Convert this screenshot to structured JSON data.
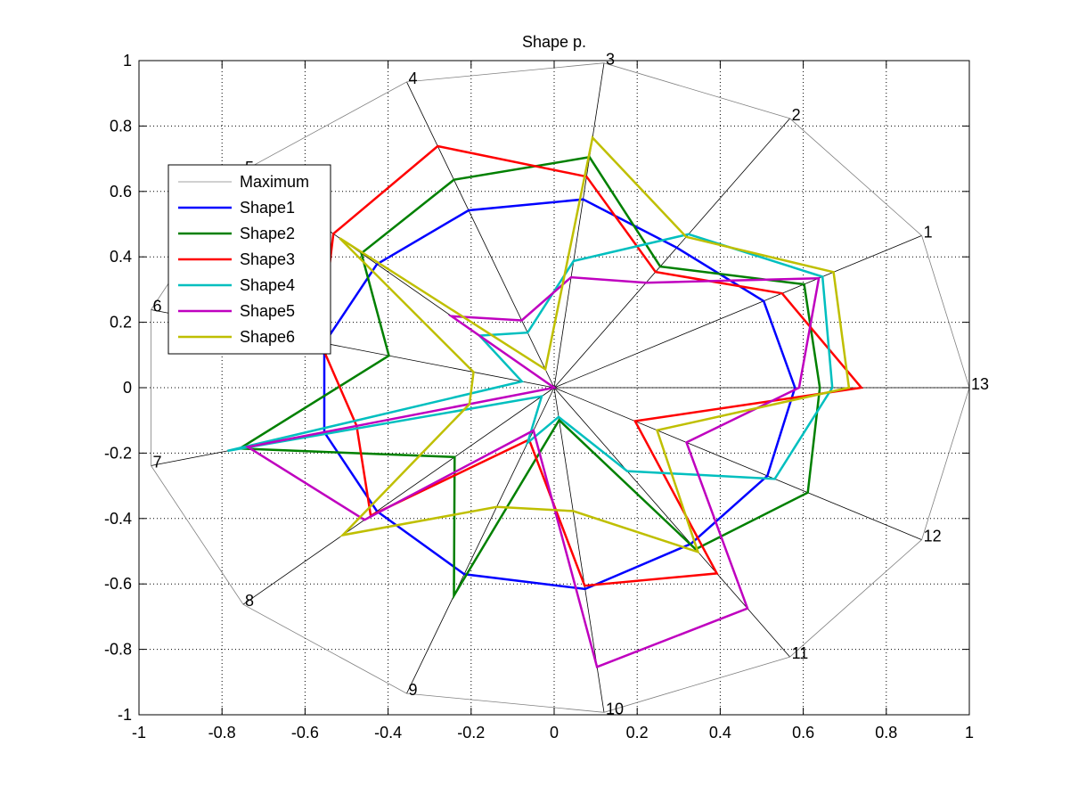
{
  "chart_data": {
    "type": "line",
    "subtype": "radar",
    "title": "Shape p.",
    "xlim": [
      -1,
      1
    ],
    "ylim": [
      -1,
      1
    ],
    "xticks": [
      "-1",
      "-0.8",
      "-0.6",
      "-0.4",
      "-0.2",
      "0",
      "0.2",
      "0.4",
      "0.6",
      "0.8",
      "1"
    ],
    "yticks": [
      "-1",
      "-0.8",
      "-0.6",
      "-0.4",
      "-0.2",
      "0",
      "0.2",
      "0.4",
      "0.6",
      "0.8",
      "1"
    ],
    "grid": true,
    "legend_placement": "left",
    "spoke_labels": [
      "1",
      "2",
      "3",
      "4",
      "5",
      "6",
      "7",
      "8",
      "9",
      "10",
      "11",
      "12",
      "13"
    ],
    "spoke_angles_deg": [
      27.7,
      55.4,
      83.1,
      110.8,
      138.5,
      166.2,
      193.8,
      221.5,
      249.2,
      276.9,
      304.6,
      332.3,
      360
    ],
    "series": [
      {
        "name": "Maximum",
        "color": "#808080",
        "values": [
          1,
          1,
          1,
          1,
          1,
          1,
          1,
          1,
          1,
          1,
          1,
          1,
          1
        ]
      },
      {
        "name": "Shape1",
        "color": "#0000ff",
        "values": [
          0.57,
          0.52,
          0.58,
          0.58,
          0.57,
          0.57,
          0.57,
          0.57,
          0.61,
          0.62,
          0.58,
          0.58,
          0.58
        ]
      },
      {
        "name": "Shape2",
        "color": "#008000",
        "values": [
          0.68,
          0.45,
          0.71,
          0.68,
          0.62,
          0.41,
          0.78,
          0.32,
          0.68,
          0.1,
          0.6,
          0.69,
          0.64
        ]
      },
      {
        "name": "Shape3",
        "color": "#ff0000",
        "values": [
          0.62,
          0.43,
          0.65,
          0.79,
          0.71,
          0.58,
          0.49,
          0.59,
          0.17,
          0.61,
          0.69,
          0.22,
          0.74
        ]
      },
      {
        "name": "Shape4",
        "color": "#00bfbf",
        "values": [
          0.73,
          0.57,
          0.39,
          0.18,
          0.24,
          0.08,
          0.81,
          0.04,
          0.18,
          0.09,
          0.31,
          0.6,
          0.67
        ]
      },
      {
        "name": "Shape5",
        "color": "#bf00bf",
        "values": [
          0.72,
          0.39,
          0.34,
          0.22,
          0.33,
          0.0,
          0.76,
          0.61,
          0.14,
          0.86,
          0.82,
          0.36,
          0.59
        ]
      },
      {
        "name": "Shape6",
        "color": "#bfbf00",
        "values": [
          0.76,
          0.56,
          0.77,
          0.06,
          0.69,
          0.2,
          0.21,
          0.68,
          0.39,
          0.38,
          0.61,
          0.28,
          0.71
        ]
      }
    ]
  }
}
